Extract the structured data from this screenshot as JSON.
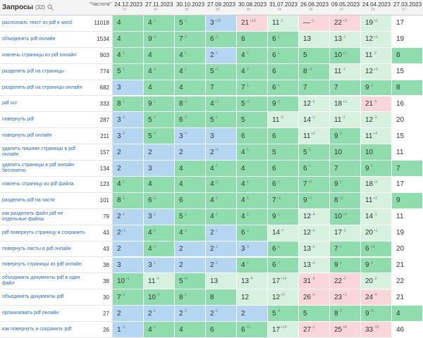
{
  "header": {
    "title": "Запросы",
    "count": "(32)",
    "frequency": "\"Частота\"",
    "dates": [
      {
        "date": "24.12.2023",
        "value": 97
      },
      {
        "date": "27.11.2023",
        "value": 94
      },
      {
        "date": "30.10.2023",
        "value": 95
      },
      {
        "date": "27.09.2023",
        "value": 88
      },
      {
        "date": "30.08.2023",
        "value": 86
      },
      {
        "date": "31.07.2023",
        "value": 66
      },
      {
        "date": "26.06.2023",
        "value": 38
      },
      {
        "date": "09.05.2023",
        "value": 47
      },
      {
        "date": "24.04.2023",
        "value": 19
      },
      {
        "date": "27.03.2023",
        "value": 37
      }
    ]
  },
  "rows": [
    {
      "query": "распознать текст из pdf в word",
      "frequency": 11018,
      "positions": [
        4,
        4,
        5,
        3,
        21,
        11,
        "—",
        22,
        19,
        17
      ],
      "changes": [
        null,
        "-1",
        "-2",
        "+18",
        "+10",
        "-1",
        "-1",
        "+3",
        "+2",
        null
      ]
    },
    {
      "query": "объединить pdf онлайн",
      "frequency": 1534,
      "positions": [
        4,
        9,
        7,
        6,
        6,
        6,
        13,
        13,
        12,
        19
      ],
      "changes": [
        null,
        "+1",
        "-3",
        "-3",
        null,
        "-1",
        null,
        "-1",
        "+3",
        null
      ]
    },
    {
      "query": "извлечь страницы из pdf онлайн",
      "frequency": 903,
      "positions": [
        4,
        4,
        4,
        2,
        4,
        6,
        5,
        10,
        11,
        8
      ],
      "changes": [
        "-1",
        null,
        "-1",
        "-1",
        "-1",
        "-1",
        null,
        "+1",
        "-3",
        null
      ]
    },
    {
      "query": "разделить pdf на страницы",
      "frequency": 774,
      "positions": [
        5,
        4,
        4,
        5,
        4,
        6,
        8,
        11,
        12,
        15
      ],
      "changes": [
        "-1",
        "-2",
        "-1",
        "+1",
        "-2",
        null,
        "+3",
        "-1",
        "+3",
        null
      ]
    },
    {
      "query": "разделить pdf на страницы онлайн",
      "frequency": 682,
      "positions": [
        3,
        4,
        4,
        7,
        7,
        6,
        7,
        7,
        9,
        8
      ],
      "changes": [
        null,
        null,
        null,
        null,
        "-1",
        "-1",
        null,
        null,
        "-1",
        null
      ]
    },
    {
      "query": "pdf ocr",
      "frequency": 333,
      "positions": [
        8,
        9,
        8,
        4,
        5,
        9,
        12,
        18,
        21,
        16
      ],
      "changes": [
        "-1",
        "-1",
        "-4",
        "+1",
        "+1",
        "-2",
        "-5",
        "+3",
        "-5",
        null
      ]
    },
    {
      "query": "повернуть pdf",
      "frequency": 287,
      "positions": [
        3,
        5,
        6,
        5,
        5,
        11,
        14,
        11,
        12,
        20
      ],
      "changes": [
        "-2",
        "-1",
        "-3",
        "-1",
        null,
        "-3",
        "-1",
        "-1",
        "-1",
        null
      ]
    },
    {
      "query": "повернуть pdf онлайн",
      "frequency": 211,
      "positions": [
        3,
        5,
        3,
        3,
        6,
        6,
        11,
        9,
        11,
        15
      ],
      "changes": [
        "-2",
        "-2",
        "-3",
        null,
        null,
        null,
        "+2",
        "-2",
        "+4",
        null
      ]
    },
    {
      "query": "удалить лишние страницы в pdf онлайн",
      "frequency": 157,
      "positions": [
        2,
        2,
        2,
        2,
        4,
        5,
        5,
        10,
        10,
        11
      ],
      "changes": [
        null,
        null,
        null,
        "+1",
        "-1",
        null,
        "-5",
        null,
        null,
        null
      ]
    },
    {
      "query": "удалить страницы в pdf онлайн бесплатно",
      "frequency": 134,
      "positions": [
        2,
        3,
        4,
        4,
        4,
        6,
        6,
        7,
        9,
        7
      ],
      "changes": [
        null,
        null,
        null,
        "-1",
        null,
        null,
        "-1",
        null,
        "-1",
        null
      ]
    },
    {
      "query": "извлечь страницу из pdf файла",
      "frequency": 123,
      "positions": [
        4,
        4,
        4,
        4,
        4,
        6,
        7,
        9,
        18,
        17
      ],
      "changes": [
        "-1",
        null,
        null,
        "-2",
        "-1",
        "-1",
        "+2",
        "-1",
        "+1",
        null
      ]
    },
    {
      "query": "разделить pdf на части",
      "frequency": 101,
      "positions": [
        8,
        6,
        6,
        4,
        4,
        7,
        9,
        8,
        11,
        9
      ],
      "changes": [
        "-1",
        "-1",
        null,
        "-1",
        "-1",
        "+2",
        "+2",
        "+2",
        "+2",
        null
      ]
    },
    {
      "query": "как разделить файл pdf не отдельные файлы",
      "frequency": 79,
      "positions": [
        2,
        3,
        5,
        4,
        4,
        9,
        12,
        10,
        14,
        11
      ],
      "changes": [
        "-1",
        "-1",
        "-1",
        "-1",
        "-1",
        "-1",
        "-4",
        "+4",
        "-1",
        null
      ]
    },
    {
      "query": "pdf повернуть страницу и сохранить",
      "frequency": 43,
      "positions": [
        2,
        4,
        4,
        2,
        6,
        14,
        12,
        17,
        20,
        19
      ],
      "changes": [
        "+1",
        "-2",
        "-2",
        "-1",
        "-2",
        "-7",
        "-4",
        "-3",
        "+1",
        null
      ]
    },
    {
      "query": "повернуть листы в pdf онлайн",
      "frequency": 43,
      "positions": [
        2,
        4,
        2,
        2,
        3,
        6,
        13,
        7,
        6,
        20
      ],
      "changes": [
        null,
        "-2",
        null,
        "-1",
        "-3",
        "-1",
        "-6",
        "-1",
        "-14",
        null
      ]
    },
    {
      "query": "повернуть страницы из pdf онлайн",
      "frequency": 38,
      "positions": [
        3,
        3,
        2,
        2,
        4,
        6,
        13,
        9,
        9,
        21
      ],
      "changes": [
        null,
        "-1",
        null,
        "-2",
        "-1",
        "-7",
        "-4",
        "-1",
        "-3",
        null
      ]
    },
    {
      "query": "объединить документы pdf в один файл",
      "frequency": 38,
      "positions": [
        10,
        11,
        5,
        13,
        13,
        17,
        31,
        22,
        20,
        22
      ],
      "changes": [
        "+1",
        "-6",
        "+5",
        null,
        "-4",
        "+14",
        "-9",
        "-2",
        "-2",
        null
      ]
    },
    {
      "query": "объединить документы pdf",
      "frequency": 30,
      "positions": [
        7,
        10,
        8,
        8,
        12,
        12,
        26,
        23,
        24,
        21
      ],
      "changes": [
        "-3",
        "-2",
        "-1",
        null,
        null,
        "+2",
        "-3",
        "+1",
        "-4",
        null
      ]
    },
    {
      "query": "организовать pdf онлайн",
      "frequency": 27,
      "positions": [
        2,
        2,
        2,
        2,
        2,
        5,
        5,
        8,
        9,
        4
      ],
      "changes": [
        null,
        "-1",
        "-2",
        "-2",
        null,
        "-3",
        null,
        "-1",
        "+5",
        null
      ]
    },
    {
      "query": "как повернуть и сохранить pdf",
      "frequency": 26,
      "positions": [
        1,
        4,
        4,
        6,
        6,
        17,
        27,
        25,
        33,
        46
      ],
      "changes": [
        "-3",
        "-1",
        null,
        null,
        "-11",
        "+10",
        "-2",
        "+8",
        "-13",
        null
      ]
    }
  ]
}
